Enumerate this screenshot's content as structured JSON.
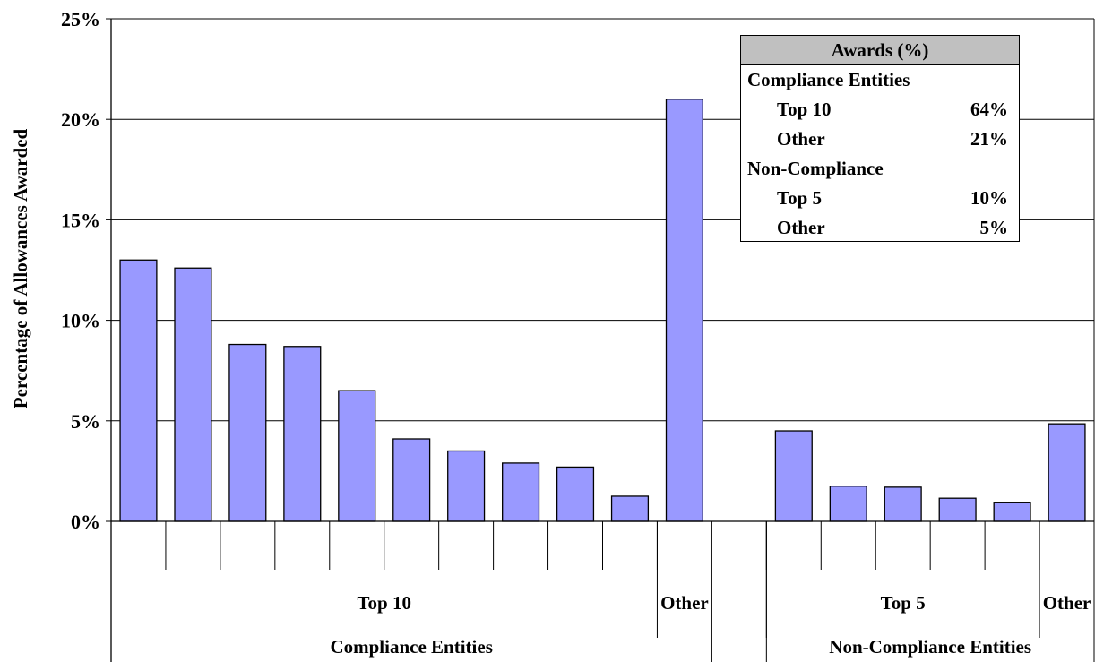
{
  "chart_data": {
    "type": "bar",
    "title": "",
    "ylabel": "Percentage of Allowances Awarded",
    "ylim": [
      0,
      25
    ],
    "yticks": [
      "0%",
      "5%",
      "10%",
      "15%",
      "20%",
      "25%"
    ],
    "grid": "horizontal",
    "groups": [
      {
        "name": "Compliance Entities",
        "subgroups": [
          {
            "name": "Top 10",
            "values": [
              13.0,
              12.6,
              8.8,
              8.7,
              6.5,
              4.1,
              3.5,
              2.9,
              2.7,
              1.25
            ]
          },
          {
            "name": "Other",
            "values": [
              21.0
            ]
          }
        ]
      },
      {
        "name": "Non-Compliance Entities",
        "subgroups": [
          {
            "name": "Top 5",
            "values": [
              4.5,
              1.75,
              1.7,
              1.15,
              0.95
            ]
          },
          {
            "name": "Other",
            "values": [
              4.85
            ]
          }
        ]
      }
    ],
    "color": "#9999ff"
  },
  "legend": {
    "title": "Awards (%)",
    "groups": [
      {
        "name": "Compliance Entities",
        "rows": [
          {
            "label": "Top 10",
            "value": "64%"
          },
          {
            "label": "Other",
            "value": "21%"
          }
        ]
      },
      {
        "name": "Non-Compliance",
        "rows": [
          {
            "label": "Top 5",
            "value": "10%"
          },
          {
            "label": "Other",
            "value": "5%"
          }
        ]
      }
    ],
    "placement": "top-right"
  }
}
